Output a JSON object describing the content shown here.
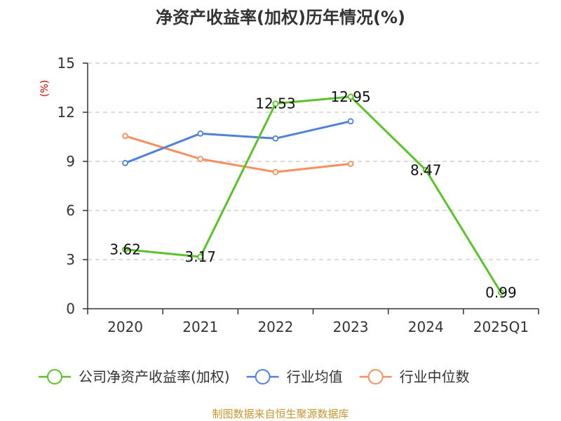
{
  "chart_data": {
    "type": "line",
    "title": "净资产收益率(加权)历年情况(%)",
    "ylabel": "(%)",
    "categories": [
      "2020",
      "2021",
      "2022",
      "2023",
      "2024",
      "2025Q1"
    ],
    "yticks": [
      "0",
      "3",
      "6",
      "9",
      "12",
      "15"
    ],
    "ylim": [
      0,
      15
    ],
    "grid": true,
    "legend_position": "bottom",
    "series": [
      {
        "name": "公司净资产收益率(加权)",
        "color": "#5ac329",
        "values": [
          3.62,
          3.17,
          12.53,
          12.95,
          8.47,
          0.99
        ],
        "labels": [
          "3.62",
          "3.17",
          "12.53",
          "12.95",
          "8.47",
          "0.99"
        ]
      },
      {
        "name": "行业均值",
        "color": "#4f82d9",
        "values": [
          8.9,
          10.7,
          10.4,
          11.45,
          null,
          null
        ]
      },
      {
        "name": "行业中位数",
        "color": "#f78f5e",
        "values": [
          10.55,
          9.15,
          8.35,
          8.85,
          null,
          null
        ]
      }
    ],
    "source": "制图数据来自恒生聚源数据库",
    "source_color": "#c8962e",
    "ylabel_color": "#cc0000"
  }
}
